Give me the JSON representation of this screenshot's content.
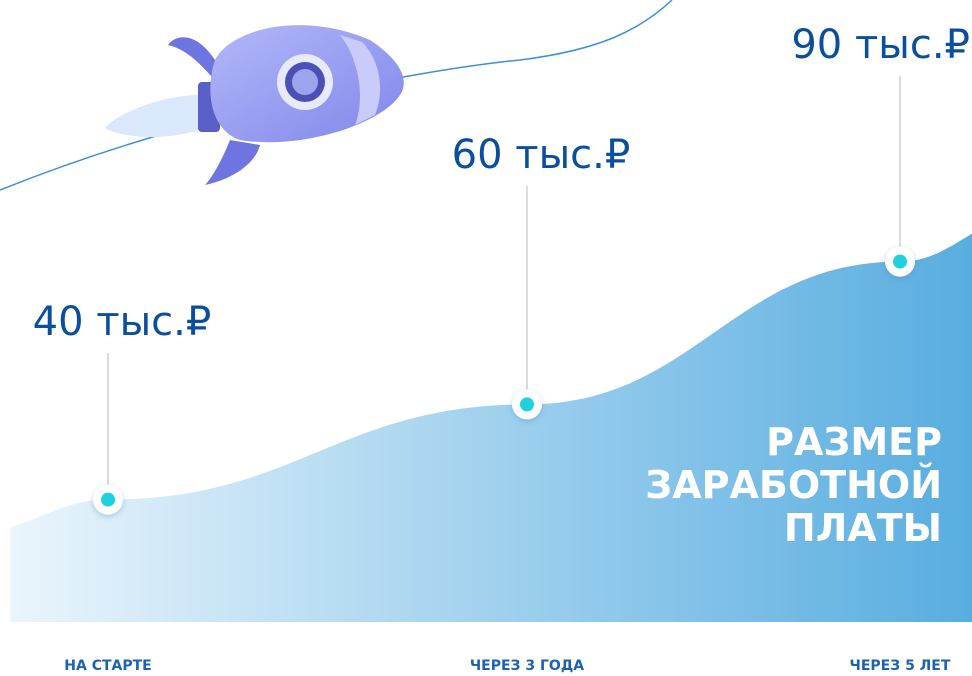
{
  "chart_data": {
    "type": "area",
    "title": [
      "РАЗМЕР",
      "ЗАРАБОТНОЙ",
      "ПЛАТЫ"
    ],
    "categories": [
      "НА СТАРТЕ",
      "ЧЕРЕЗ 3 ГОДА",
      "ЧЕРЕЗ 5 ЛЕТ"
    ],
    "values": [
      40,
      60,
      90
    ],
    "value_labels": [
      "40 тыс.₽",
      "60 тыс.₽",
      "90 тыс.₽"
    ],
    "color": "#5aaee0"
  }
}
